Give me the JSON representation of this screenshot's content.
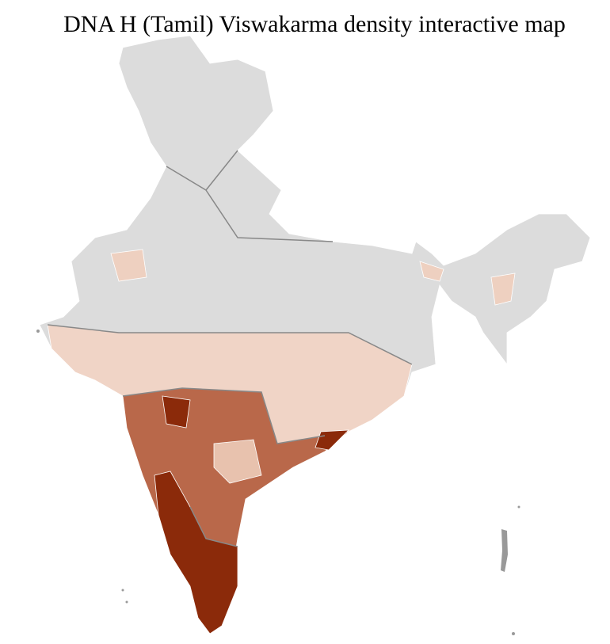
{
  "title": "DNA H (Tamil) Viswakarma density interactive map"
}
